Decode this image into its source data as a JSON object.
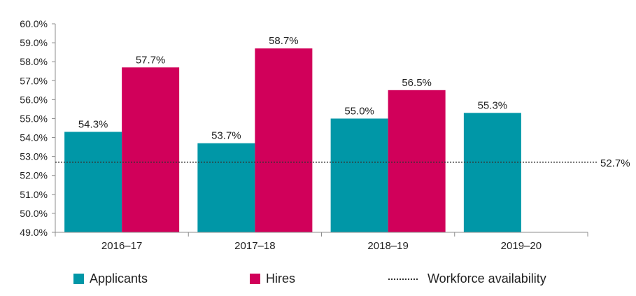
{
  "chart_data": {
    "type": "bar",
    "categories": [
      "2016–17",
      "2017–18",
      "2018–19",
      "2019–20"
    ],
    "series": [
      {
        "name": "Applicants",
        "color": "#0097A7",
        "values": [
          54.3,
          53.7,
          55.0,
          55.3
        ]
      },
      {
        "name": "Hires",
        "color": "#D1005A",
        "values": [
          57.7,
          58.7,
          56.5,
          null
        ]
      }
    ],
    "reference_line": {
      "name": "Workforce availability",
      "value": 52.7,
      "label": "52.7%",
      "style": "dotted"
    },
    "value_labels": [
      [
        "54.3%",
        "53.7%",
        "55.0%",
        "55.3%"
      ],
      [
        "57.7%",
        "58.7%",
        "56.5%",
        ""
      ]
    ],
    "yticks": [
      49.0,
      50.0,
      51.0,
      52.0,
      53.0,
      54.0,
      55.0,
      56.0,
      57.0,
      58.0,
      59.0,
      60.0
    ],
    "ytick_labels": [
      "49.0%",
      "50.0%",
      "51.0%",
      "52.0%",
      "53.0%",
      "54.0%",
      "55.0%",
      "56.0%",
      "57.0%",
      "58.0%",
      "59.0%",
      "60.0%"
    ],
    "ylim": [
      49.0,
      60.0
    ],
    "title": "",
    "xlabel": "",
    "ylabel": "",
    "grid": false,
    "legend_position": "bottom"
  },
  "legend": {
    "applicants_label": "Applicants",
    "hires_label": "Hires",
    "workforce_label": "Workforce availability"
  }
}
